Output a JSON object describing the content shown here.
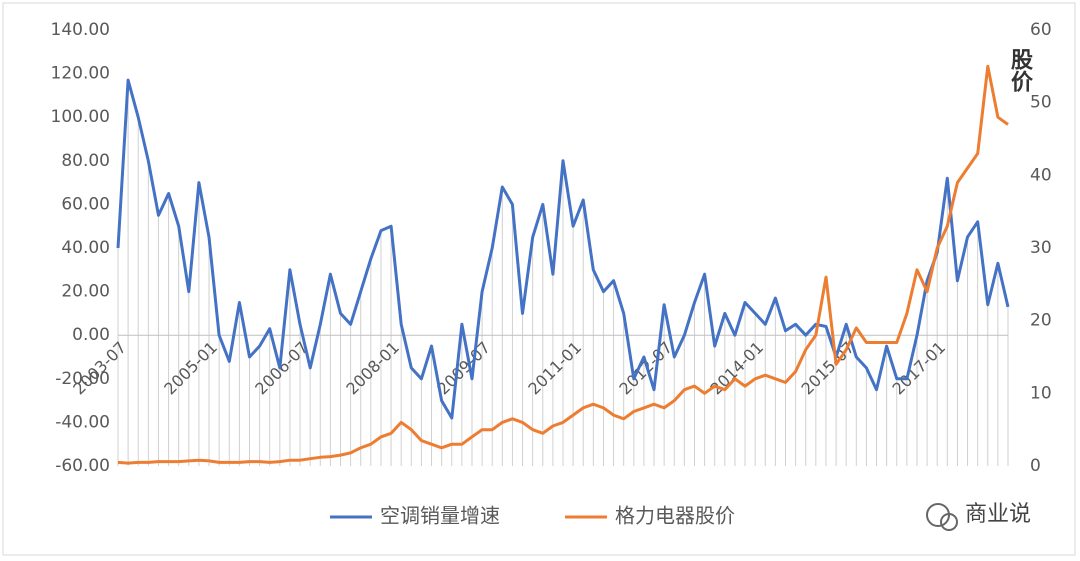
{
  "chart_data": {
    "type": "line",
    "categories": [
      "2003-07",
      null,
      null,
      null,
      null,
      null,
      null,
      null,
      null,
      "2005-01",
      null,
      null,
      null,
      null,
      null,
      null,
      null,
      null,
      "2006-07",
      null,
      null,
      null,
      null,
      null,
      null,
      null,
      null,
      "2008-01",
      null,
      null,
      null,
      null,
      null,
      null,
      null,
      null,
      "2009-07",
      null,
      null,
      null,
      null,
      null,
      null,
      null,
      null,
      "2011-01",
      null,
      null,
      null,
      null,
      null,
      null,
      null,
      null,
      "2012-07",
      null,
      null,
      null,
      null,
      null,
      null,
      null,
      null,
      "2014-01",
      null,
      null,
      null,
      null,
      null,
      null,
      null,
      null,
      "2015-07",
      null,
      null,
      null,
      null,
      null,
      null,
      null,
      null,
      "2017-01",
      null,
      null,
      null,
      null,
      null,
      null,
      null
    ],
    "series": [
      {
        "name": "空调销量增速",
        "color": "#4472c4",
        "values": [
          40,
          117,
          100,
          80,
          55,
          65,
          50,
          20,
          70,
          45,
          0,
          -12,
          15,
          -10,
          -5,
          3,
          -15,
          30,
          5,
          -15,
          5,
          28,
          10,
          5,
          20,
          35,
          48,
          50,
          5,
          -15,
          -20,
          -5,
          -30,
          -38,
          5,
          -20,
          20,
          40,
          68,
          60,
          10,
          45,
          60,
          28,
          80,
          50,
          62,
          30,
          20,
          25,
          10,
          -20,
          -10,
          -25,
          14,
          -10,
          0,
          15,
          28,
          -5,
          10,
          0,
          15,
          10,
          5,
          17,
          2,
          5,
          0,
          5,
          4,
          -10,
          5,
          -10,
          -15,
          -25,
          -5,
          -20,
          -20,
          0,
          25,
          38,
          72,
          25,
          45,
          52,
          14,
          33,
          13
        ]
      },
      {
        "name": "格力电器股价",
        "color": "#ed7d31",
        "axis": "y2",
        "values": [
          0.5,
          0.4,
          0.5,
          0.5,
          0.6,
          0.6,
          0.6,
          0.7,
          0.8,
          0.7,
          0.5,
          0.5,
          0.5,
          0.6,
          0.6,
          0.5,
          0.6,
          0.8,
          0.8,
          1,
          1.2,
          1.3,
          1.5,
          1.8,
          2.5,
          3,
          4,
          4.5,
          6,
          5,
          3.5,
          3,
          2.5,
          3,
          3,
          4,
          5,
          5,
          6,
          6.5,
          6,
          5,
          4.5,
          5.5,
          6,
          7,
          8,
          8.5,
          8,
          7,
          6.5,
          7.5,
          8,
          8.5,
          8,
          9,
          10.5,
          11,
          10,
          11,
          10.5,
          12,
          11,
          12,
          12.5,
          12,
          11.5,
          13,
          16,
          18,
          26,
          14,
          16,
          19,
          17,
          17,
          17,
          17,
          21,
          27,
          24,
          30,
          33,
          39,
          41,
          43,
          55,
          48,
          47
        ]
      }
    ],
    "ylim": [
      -60,
      140
    ],
    "yticks": [
      {
        "value": -60,
        "label": "-60.00"
      },
      {
        "value": -40,
        "label": "-40.00"
      },
      {
        "value": -20,
        "label": "-20.00"
      },
      {
        "value": 0,
        "label": "0.00"
      },
      {
        "value": 20,
        "label": "20.00"
      },
      {
        "value": 40,
        "label": "40.00"
      },
      {
        "value": 60,
        "label": "60.00"
      },
      {
        "value": 80,
        "label": "80.00"
      },
      {
        "value": 100,
        "label": "100.00"
      },
      {
        "value": 120,
        "label": "120.00"
      },
      {
        "value": 140,
        "label": "140.00"
      }
    ],
    "y2lim": [
      0,
      60
    ],
    "y2ticks": [
      0,
      10,
      20,
      30,
      40,
      50,
      60
    ],
    "y2label": "股价",
    "legend": "bottom",
    "watermark": "商业说"
  }
}
